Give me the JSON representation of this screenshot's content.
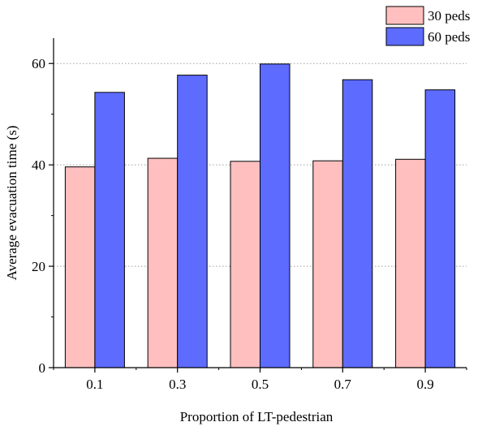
{
  "chart_data": {
    "type": "bar",
    "title": "",
    "xlabel": "Proportion of LT-pedestrian",
    "ylabel": "Average evacuation time (s)",
    "categories": [
      "0.1",
      "0.3",
      "0.5",
      "0.7",
      "0.9"
    ],
    "series": [
      {
        "name": "30 peds",
        "values": [
          39.6,
          41.3,
          40.7,
          40.8,
          41.1
        ]
      },
      {
        "name": "60 peds",
        "values": [
          54.3,
          57.7,
          59.9,
          56.8,
          54.8
        ]
      }
    ],
    "ylim": [
      0,
      65
    ],
    "yticks": [
      0,
      20,
      40,
      60
    ],
    "grid": "horizontal dotted at major ticks",
    "legend": "top-right",
    "colors": {
      "30 peds": "#ffbfbf",
      "60 peds": "#5d6bff",
      "grid": "#a0a0a0",
      "axis": "#000000"
    }
  }
}
